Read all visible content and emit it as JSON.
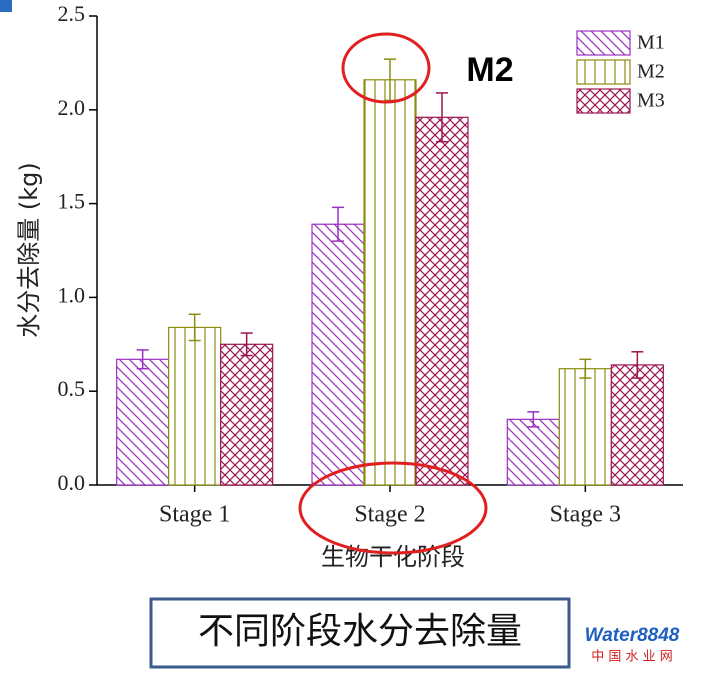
{
  "chart_data": {
    "type": "bar",
    "xlabel": "生物干化阶段",
    "ylabel": "水分去除量 (kg)",
    "categories": [
      "Stage 1",
      "Stage 2",
      "Stage 3"
    ],
    "series": [
      {
        "name": "M1",
        "color": "#9b2fc4",
        "values": [
          0.67,
          1.39,
          0.35
        ],
        "errors": [
          0.05,
          0.09,
          0.04
        ]
      },
      {
        "name": "M2",
        "color": "#8c8c10",
        "values": [
          0.84,
          2.16,
          0.62
        ],
        "errors": [
          0.07,
          0.11,
          0.05
        ]
      },
      {
        "name": "M3",
        "color": "#9c1452",
        "values": [
          0.75,
          1.96,
          0.64
        ],
        "errors": [
          0.06,
          0.13,
          0.07
        ]
      }
    ],
    "ylim": [
      0,
      2.5
    ],
    "yticks": [
      {
        "value": 0,
        "label": "0.0"
      },
      0.5,
      {
        "value": 1,
        "label": "1.0"
      },
      1.5,
      {
        "value": 2,
        "label": "2.0"
      },
      2.5
    ],
    "legend": "upper right",
    "annotation": "M2",
    "caption": "不同阶段水分去除量",
    "watermark": {
      "logo": "Water8848",
      "site": "中 国 水 业 网"
    }
  }
}
